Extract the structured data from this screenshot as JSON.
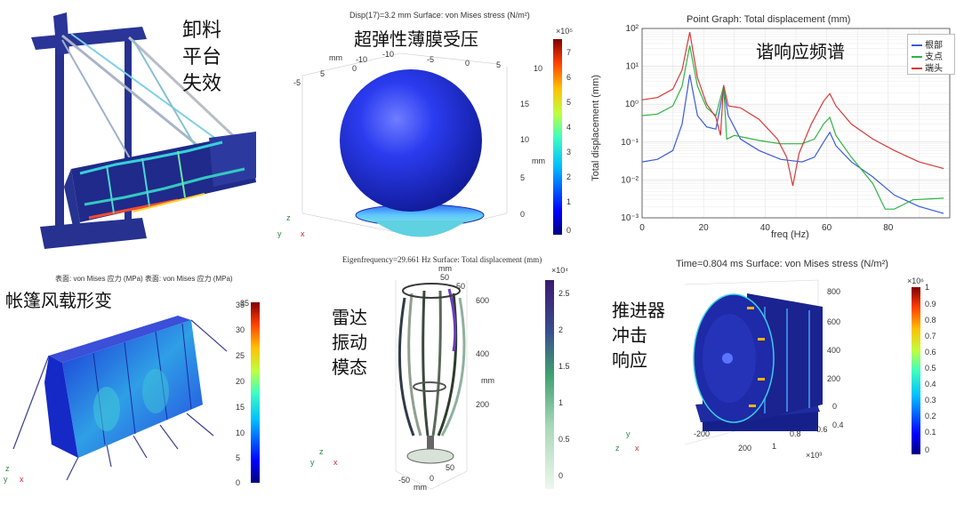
{
  "panels": {
    "platform": {
      "caption": [
        "卸料",
        "平台",
        "失效"
      ]
    },
    "membrane": {
      "caption": "超弹性薄膜受压",
      "header": "Disp(17)=3.2 mm   Surface: von Mises stress (N/m²)",
      "colorbar_exp": "×10⁵",
      "colorbar_ticks": [
        "7",
        "6",
        "5",
        "4",
        "3",
        "2",
        "1",
        "0"
      ],
      "axis_unit": "mm",
      "axis_top_ticks": [
        "-10",
        "-5",
        "0",
        "5",
        "10"
      ],
      "axis_left_ticks": [
        "5",
        "0",
        "-5",
        "-10"
      ],
      "axis_right_ticks": [
        "15",
        "10",
        "5",
        "0"
      ],
      "axis_right_unit": "mm",
      "triad": [
        "z",
        "y",
        "x"
      ]
    },
    "harmonic": {
      "caption": "谐响应频谱"
    },
    "tent": {
      "caption": "帐篷风载形变",
      "header": "表面: von Mises 应力 (MPa)  表面: von Mises 应力 (MPa)",
      "colorbar_ticks": [
        "35",
        "30",
        "25",
        "20",
        "15",
        "10",
        "5",
        "0"
      ],
      "triad": [
        "z",
        "y",
        "x"
      ]
    },
    "radar": {
      "caption": [
        "雷达",
        "振动",
        "模态"
      ],
      "header": "Eigenfrequency=29.661 Hz   Surface: Total displacement (mm)",
      "colorbar_exp": "×10⁴",
      "colorbar_ticks": [
        "2.5",
        "2",
        "1.5",
        "1",
        "0.5",
        "0"
      ],
      "axis_unit": "mm",
      "top_ticks": [
        "50",
        "-50"
      ],
      "right_ticks": [
        "600",
        "400",
        "200"
      ],
      "bottom_ticks": [
        "50",
        "0",
        "-50"
      ],
      "triad": [
        "z",
        "y",
        "x"
      ]
    },
    "thruster": {
      "caption": [
        "推进器",
        "冲击",
        "响应"
      ],
      "header": "Time=0.804 ms   Surface: von Mises stress (N/m²)",
      "colorbar_exp": "×10⁶",
      "colorbar_ticks": [
        "1",
        "0.9",
        "0.8",
        "0.7",
        "0.6",
        "0.5",
        "0.4",
        "0.3",
        "0.2",
        "0.1",
        "0"
      ],
      "right_ticks": [
        "800",
        "600",
        "400",
        "200",
        "0"
      ],
      "bottom_ticks": [
        "-200",
        "200",
        "0.8",
        "0.6",
        "0.4",
        "1"
      ],
      "bottom_exp": "×10³",
      "triad": [
        "y",
        "z",
        "x"
      ]
    }
  },
  "chart_data": {
    "type": "line",
    "title": "Point Graph: Total displacement (mm)",
    "xlabel": "freq (Hz)",
    "ylabel": "Total displacement (mm)",
    "xlim": [
      0,
      100
    ],
    "ylim": [
      0.001,
      100
    ],
    "yscale": "log",
    "x_ticks": [
      0,
      20,
      40,
      60,
      80
    ],
    "y_ticks": [
      "10²",
      "10¹",
      "10⁰",
      "10⁻¹",
      "10⁻²",
      "10⁻³"
    ],
    "legend_position": "top-right",
    "grid": true,
    "series": [
      {
        "name": "根部",
        "color": "#3b5bdb",
        "points": [
          [
            0,
            0.03
          ],
          [
            5,
            0.035
          ],
          [
            10,
            0.06
          ],
          [
            13,
            0.3
          ],
          [
            15.5,
            6
          ],
          [
            18,
            0.5
          ],
          [
            21,
            0.25
          ],
          [
            24,
            0.22
          ],
          [
            26.5,
            2.5
          ],
          [
            28,
            0.5
          ],
          [
            32,
            0.12
          ],
          [
            38,
            0.06
          ],
          [
            45,
            0.035
          ],
          [
            52,
            0.03
          ],
          [
            56,
            0.04
          ],
          [
            59,
            0.1
          ],
          [
            61,
            0.18
          ],
          [
            63,
            0.08
          ],
          [
            68,
            0.03
          ],
          [
            75,
            0.012
          ],
          [
            82,
            0.004
          ],
          [
            90,
            0.002
          ],
          [
            98,
            0.0013
          ]
        ]
      },
      {
        "name": "支点",
        "color": "#2fb344",
        "points": [
          [
            0,
            0.5
          ],
          [
            5,
            0.55
          ],
          [
            10,
            0.9
          ],
          [
            13,
            3
          ],
          [
            15.5,
            35
          ],
          [
            18,
            3
          ],
          [
            21,
            0.8
          ],
          [
            24,
            0.5
          ],
          [
            26.5,
            3
          ],
          [
            27.5,
            0.12
          ],
          [
            30,
            0.15
          ],
          [
            38,
            0.11
          ],
          [
            45,
            0.09
          ],
          [
            52,
            0.09
          ],
          [
            56,
            0.12
          ],
          [
            59,
            0.3
          ],
          [
            61,
            0.45
          ],
          [
            63,
            0.15
          ],
          [
            68,
            0.04
          ],
          [
            75,
            0.008
          ],
          [
            79,
            0.0017
          ],
          [
            82,
            0.0017
          ],
          [
            88,
            0.003
          ],
          [
            98,
            0.0033
          ]
        ]
      },
      {
        "name": "端头",
        "color": "#d63939",
        "points": [
          [
            0,
            1.3
          ],
          [
            5,
            1.5
          ],
          [
            10,
            2.5
          ],
          [
            13,
            8
          ],
          [
            15.5,
            80
          ],
          [
            18,
            5
          ],
          [
            21,
            1
          ],
          [
            24,
            0.45
          ],
          [
            25.5,
            0.15
          ],
          [
            26.5,
            3.2
          ],
          [
            28,
            0.9
          ],
          [
            32,
            0.8
          ],
          [
            38,
            0.4
          ],
          [
            44,
            0.12
          ],
          [
            47,
            0.04
          ],
          [
            49,
            0.007
          ],
          [
            51,
            0.05
          ],
          [
            55,
            0.3
          ],
          [
            59,
            1.2
          ],
          [
            61,
            1.9
          ],
          [
            63,
            0.9
          ],
          [
            68,
            0.3
          ],
          [
            75,
            0.12
          ],
          [
            82,
            0.06
          ],
          [
            90,
            0.03
          ],
          [
            98,
            0.02
          ]
        ]
      }
    ]
  }
}
